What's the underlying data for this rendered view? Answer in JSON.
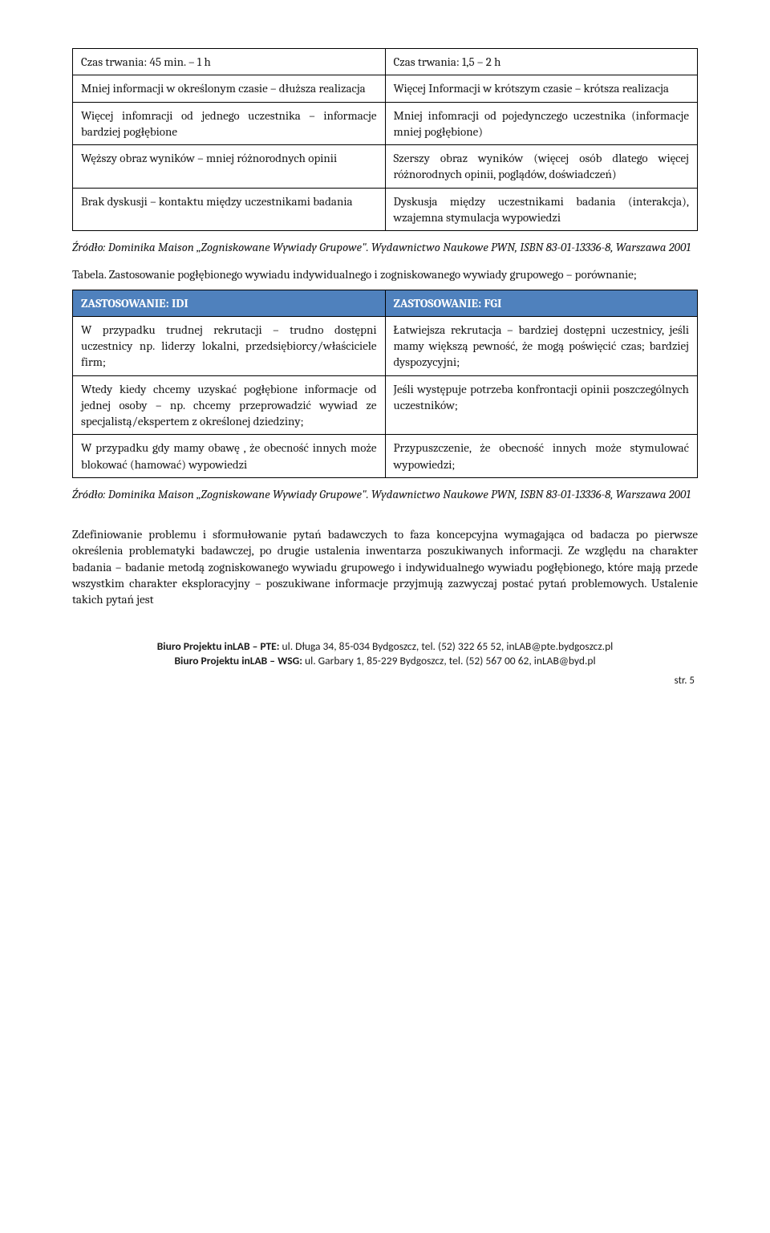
{
  "table1": {
    "rows": [
      {
        "left": "Czas trwania: 45 min. – 1 h",
        "right": "Czas trwania: 1,5 – 2 h"
      },
      {
        "left": "Mniej informacji w określonym czasie – dłuższa realizacja",
        "right": "Więcej Informacji w krótszym czasie – krótsza realizacja"
      },
      {
        "left": "Więcej infomracji od jednego uczestnika – informacje bardziej pogłębione",
        "right": "Mniej infomracji od pojedynczego uczestnika (informacje mniej pogłębione)"
      },
      {
        "left": "Węższy obraz wyników – mniej różnorodnych opinii",
        "right": "Szerszy obraz wyników (więcej osób dlatego więcej różnorodnych opinii, poglądów, doświadczeń)"
      },
      {
        "left": "Brak dyskusji – kontaktu między uczestnikami badania",
        "right": "Dyskusja między uczestnikami badania (interakcja), wzajemna stymulacja wypowiedzi"
      }
    ]
  },
  "source1": "Źródło: Dominika Maison „Zogniskowane Wywiady Grupowe\". Wydawnictwo Naukowe PWN, ISBN 83-01-13336-8, Warszawa 2001",
  "tableTitle": "Tabela. Zastosowanie pogłębionego wywiadu indywidualnego i zogniskowanego wywiady grupowego – porównanie;",
  "table2": {
    "header": {
      "left": "ZASTOSOWANIE: IDI",
      "right": "ZASTOSOWANIE: FGI"
    },
    "rows": [
      {
        "left": "W przypadku trudnej rekrutacji – trudno dostępni uczestnicy np. liderzy lokalni, przedsiębiorcy/właściciele firm;",
        "right": "Łatwiejsza rekrutacja – bardziej dostępni uczestnicy, jeśli mamy większą pewność, że mogą poświęcić czas; bardziej dyspozycyjni;"
      },
      {
        "left": "Wtedy kiedy chcemy uzyskać pogłębione informacje od jednej osoby – np. chcemy przeprowadzić wywiad ze specjalistą/ekspertem z określonej dziedziny;",
        "right": "Jeśli występuje potrzeba konfrontacji opinii poszczególnych uczestników;"
      },
      {
        "left": "W przypadku gdy mamy obawę , że obecność innych może blokować (hamować) wypowiedzi",
        "right": "Przypuszczenie, że obecność innych może stymulować wypowiedzi;"
      }
    ]
  },
  "source2": "Źródło: Dominika Maison „Zogniskowane Wywiady Grupowe\". Wydawnictwo Naukowe PWN, ISBN 83-01-13336-8, Warszawa 2001",
  "body": "Zdefiniowanie problemu i sformułowanie pytań badawczych to faza koncepcyjna wymagająca od badacza po pierwsze określenia problematyki badawczej, po drugie ustalenia inwentarza poszukiwanych informacji. Ze względu na charakter badania – badanie metodą zogniskowanego wywiadu grupowego i indywidualnego wywiadu pogłębionego, które mają przede wszystkim charakter eksploracyjny – poszukiwane informacje przyjmują zazwyczaj postać pytań problemowych. Ustalenie takich pytań jest",
  "footer": {
    "line1_bold": "Biuro Projektu inLAB – PTE:",
    "line1_rest": " ul. Długa 34, 85-034 Bydgoszcz, tel. (52) 322 65 52, inLAB@pte.bydgoszcz.pl",
    "line2_bold": "Biuro Projektu inLAB – WSG:",
    "line2_rest": " ul. Garbary 1, 85-229 Bydgoszcz, tel. (52) 567 00 62, inLAB@byd.pl",
    "pagenum": "str. 5"
  }
}
